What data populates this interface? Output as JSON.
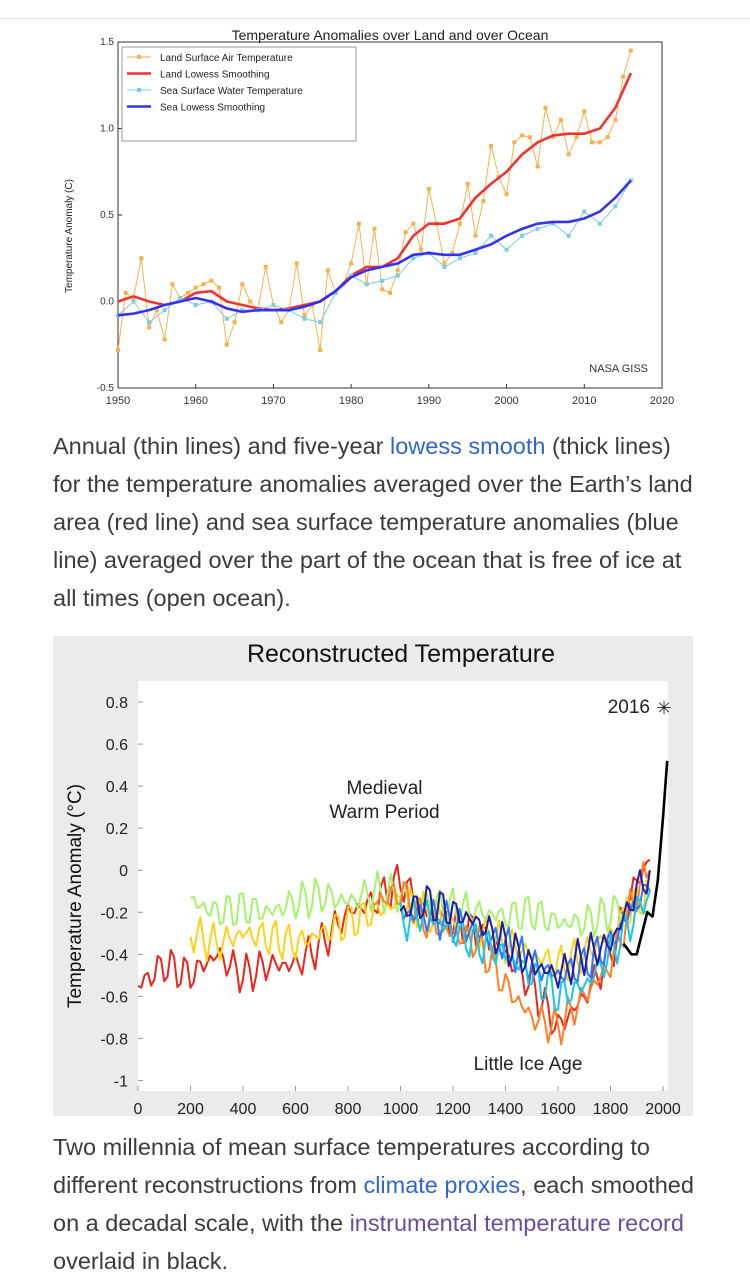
{
  "figure1": {
    "chart_data": {
      "type": "line",
      "title": "Temperature Anomalies over Land and over Ocean",
      "xlabel": "",
      "ylabel": "Temperature Anomaly (C)",
      "xlim": [
        1950,
        2020
      ],
      "ylim": [
        -0.5,
        1.5
      ],
      "xticks": [
        "1950",
        "1960",
        "1970",
        "1980",
        "1990",
        "2000",
        "2010",
        "2020"
      ],
      "yticks": [
        "-0.5",
        "0.0",
        "0.5",
        "1.0",
        "1.5"
      ],
      "grid": false,
      "legend_position": "top-left",
      "annotation": "NASA GISS",
      "series": [
        {
          "name": "Land Surface Air Temperature",
          "style": "thin-markers",
          "color": "#f5b24a",
          "x": [
            1950,
            1951,
            1952,
            1953,
            1954,
            1955,
            1956,
            1957,
            1958,
            1959,
            1960,
            1961,
            1962,
            1963,
            1964,
            1965,
            1966,
            1967,
            1968,
            1969,
            1970,
            1971,
            1972,
            1973,
            1974,
            1975,
            1976,
            1977,
            1978,
            1979,
            1980,
            1981,
            1982,
            1983,
            1984,
            1985,
            1986,
            1987,
            1988,
            1989,
            1990,
            1991,
            1992,
            1993,
            1994,
            1995,
            1996,
            1997,
            1998,
            1999,
            2000,
            2001,
            2002,
            2003,
            2004,
            2005,
            2006,
            2007,
            2008,
            2009,
            2010,
            2011,
            2012,
            2013,
            2014,
            2015,
            2016
          ],
          "values": [
            -0.28,
            0.05,
            0.02,
            0.25,
            -0.15,
            -0.05,
            -0.22,
            0.1,
            0.02,
            0.05,
            0.08,
            0.1,
            0.12,
            0.08,
            -0.25,
            -0.12,
            0.1,
            0.0,
            -0.05,
            0.2,
            -0.02,
            -0.12,
            -0.05,
            0.22,
            -0.08,
            -0.02,
            -0.28,
            0.18,
            0.05,
            0.1,
            0.22,
            0.45,
            0.1,
            0.42,
            0.07,
            0.05,
            0.18,
            0.4,
            0.45,
            0.3,
            0.65,
            0.45,
            0.22,
            0.28,
            0.45,
            0.68,
            0.38,
            0.58,
            0.9,
            0.72,
            0.62,
            0.92,
            0.96,
            0.95,
            0.78,
            1.12,
            0.95,
            1.05,
            0.85,
            0.95,
            1.1,
            0.92,
            0.92,
            0.95,
            1.05,
            1.3,
            1.45
          ]
        },
        {
          "name": "Land Lowess Smoothing",
          "style": "thick",
          "color": "#ee3333",
          "x": [
            1950,
            1952,
            1954,
            1956,
            1958,
            1960,
            1962,
            1964,
            1966,
            1968,
            1970,
            1972,
            1974,
            1976,
            1978,
            1980,
            1982,
            1984,
            1986,
            1988,
            1990,
            1992,
            1994,
            1996,
            1998,
            2000,
            2002,
            2004,
            2006,
            2008,
            2010,
            2012,
            2014,
            2016
          ],
          "values": [
            0.0,
            0.03,
            0.0,
            -0.02,
            0.0,
            0.05,
            0.06,
            0.0,
            -0.02,
            -0.04,
            -0.05,
            -0.04,
            -0.02,
            0.0,
            0.06,
            0.15,
            0.2,
            0.2,
            0.25,
            0.38,
            0.45,
            0.45,
            0.48,
            0.6,
            0.68,
            0.75,
            0.85,
            0.92,
            0.96,
            0.97,
            0.97,
            1.0,
            1.12,
            1.32
          ]
        },
        {
          "name": "Sea Surface Water Temperature",
          "style": "thin-markers",
          "color": "#7ccde0",
          "x": [
            1950,
            1952,
            1954,
            1956,
            1958,
            1960,
            1962,
            1964,
            1966,
            1968,
            1970,
            1972,
            1974,
            1976,
            1978,
            1980,
            1982,
            1984,
            1986,
            1988,
            1990,
            1992,
            1994,
            1996,
            1998,
            2000,
            2002,
            2004,
            2006,
            2008,
            2010,
            2012,
            2014,
            2016
          ],
          "values": [
            -0.08,
            0.0,
            -0.12,
            -0.05,
            0.02,
            -0.02,
            0.0,
            -0.1,
            -0.05,
            -0.05,
            -0.02,
            -0.05,
            -0.1,
            -0.12,
            0.05,
            0.15,
            0.1,
            0.12,
            0.15,
            0.25,
            0.28,
            0.2,
            0.25,
            0.28,
            0.38,
            0.3,
            0.38,
            0.42,
            0.45,
            0.38,
            0.52,
            0.45,
            0.55,
            0.7
          ]
        },
        {
          "name": "Sea Lowess Smoothing",
          "style": "thick",
          "color": "#3333ee",
          "x": [
            1950,
            1952,
            1954,
            1956,
            1958,
            1960,
            1962,
            1964,
            1966,
            1968,
            1970,
            1972,
            1974,
            1976,
            1978,
            1980,
            1982,
            1984,
            1986,
            1988,
            1990,
            1992,
            1994,
            1996,
            1998,
            2000,
            2002,
            2004,
            2006,
            2008,
            2010,
            2012,
            2014,
            2016
          ],
          "values": [
            -0.08,
            -0.07,
            -0.05,
            -0.02,
            0.0,
            0.02,
            0.0,
            -0.04,
            -0.06,
            -0.05,
            -0.05,
            -0.05,
            -0.03,
            0.0,
            0.06,
            0.14,
            0.18,
            0.2,
            0.22,
            0.27,
            0.28,
            0.27,
            0.27,
            0.3,
            0.33,
            0.38,
            0.42,
            0.45,
            0.46,
            0.46,
            0.48,
            0.52,
            0.6,
            0.7
          ]
        }
      ]
    }
  },
  "caption1": {
    "pre": "Annual (thin lines) and five-year ",
    "link": "lowess smooth",
    "post": " (thick lines) for the temperature anomalies averaged over the Earth’s land area (red line) and sea surface temperature anomalies (blue line) averaged over the part of the ocean that is free of ice at all times (open ocean)."
  },
  "figure2": {
    "chart_data": {
      "type": "line",
      "title": "Reconstructed Temperature",
      "xlabel": "",
      "ylabel": "Temperature Anomaly (°C)",
      "xlim": [
        0,
        2000
      ],
      "ylim": [
        -1,
        0.8
      ],
      "xticks": [
        "0",
        "200",
        "400",
        "600",
        "800",
        "1000",
        "1200",
        "1400",
        "1600",
        "1800",
        "2000"
      ],
      "yticks": [
        "0.8",
        "0.6",
        "0.4",
        "0.2",
        "0",
        "-0.2",
        "-0.4",
        "-0.6",
        "-0.8",
        "-1"
      ],
      "grid": false,
      "annotations": [
        {
          "text": "Medieval Warm Period",
          "x": 1000,
          "y": 0.3
        },
        {
          "text": "Little Ice Age",
          "x": 1600,
          "y": -1.0
        },
        {
          "text": "2016",
          "x": 1900,
          "y": 0.75
        }
      ],
      "series": [
        {
          "color": "#e8261b",
          "x": [
            0,
            100,
            200,
            300,
            400,
            500,
            600,
            700,
            800,
            900,
            1000,
            1100,
            1200,
            1300,
            1400,
            1500,
            1600,
            1700,
            1800,
            1900,
            1950
          ],
          "values": [
            -0.55,
            -0.45,
            -0.5,
            -0.4,
            -0.5,
            -0.45,
            -0.45,
            -0.35,
            -0.2,
            -0.15,
            -0.05,
            -0.2,
            -0.25,
            -0.3,
            -0.4,
            -0.55,
            -0.75,
            -0.6,
            -0.4,
            -0.05,
            0.05
          ]
        },
        {
          "color": "#ffd21a",
          "x": [
            200,
            300,
            400,
            500,
            600,
            700,
            800,
            900,
            1000,
            1100,
            1200,
            1300,
            1400,
            1500,
            1600,
            1700,
            1800,
            1900,
            1950
          ],
          "values": [
            -0.3,
            -0.35,
            -0.3,
            -0.32,
            -0.35,
            -0.3,
            -0.25,
            -0.2,
            -0.15,
            -0.2,
            -0.25,
            -0.3,
            -0.35,
            -0.4,
            -0.45,
            -0.4,
            -0.3,
            -0.15,
            -0.1
          ]
        },
        {
          "color": "#a7f26a",
          "x": [
            200,
            300,
            400,
            500,
            600,
            700,
            800,
            900,
            1000,
            1100,
            1200,
            1300,
            1400,
            1500,
            1600,
            1700,
            1800,
            1900,
            1950
          ],
          "values": [
            -0.15,
            -0.2,
            -0.18,
            -0.2,
            -0.15,
            -0.12,
            -0.15,
            -0.1,
            -0.12,
            -0.15,
            -0.18,
            -0.2,
            -0.22,
            -0.2,
            -0.25,
            -0.25,
            -0.2,
            -0.15,
            -0.2
          ]
        },
        {
          "color": "#ff7f27",
          "x": [
            900,
            1000,
            1100,
            1200,
            1300,
            1400,
            1500,
            1600,
            1700,
            1800,
            1900,
            1950
          ],
          "values": [
            -0.15,
            -0.1,
            -0.25,
            -0.3,
            -0.35,
            -0.55,
            -0.7,
            -0.75,
            -0.6,
            -0.45,
            -0.1,
            0.0
          ]
        },
        {
          "color": "#2f79ff",
          "x": [
            1000,
            1100,
            1200,
            1300,
            1400,
            1500,
            1600,
            1700,
            1800,
            1900,
            1950
          ],
          "values": [
            -0.2,
            -0.22,
            -0.25,
            -0.3,
            -0.35,
            -0.45,
            -0.5,
            -0.45,
            -0.35,
            -0.15,
            -0.1
          ]
        },
        {
          "color": "#17c7e8",
          "x": [
            1000,
            1100,
            1200,
            1300,
            1400,
            1500,
            1600,
            1700,
            1800,
            1900,
            1950
          ],
          "values": [
            -0.25,
            -0.2,
            -0.3,
            -0.35,
            -0.4,
            -0.5,
            -0.6,
            -0.55,
            -0.4,
            -0.2,
            -0.1
          ]
        },
        {
          "color": "#1f1fa0",
          "x": [
            1000,
            1100,
            1200,
            1300,
            1400,
            1500,
            1600,
            1700,
            1800,
            1900,
            1950
          ],
          "values": [
            -0.2,
            -0.15,
            -0.2,
            -0.25,
            -0.35,
            -0.45,
            -0.5,
            -0.4,
            -0.35,
            -0.1,
            0.0
          ]
        },
        {
          "color": "#000000",
          "x": [
            1850,
            1880,
            1900,
            1920,
            1940,
            1960,
            1980,
            2000,
            2016
          ],
          "values": [
            -0.35,
            -0.4,
            -0.4,
            -0.3,
            -0.2,
            -0.22,
            -0.05,
            0.25,
            0.52
          ]
        }
      ]
    }
  },
  "caption2": {
    "pre": "Two millennia of mean surface temperatures according to different reconstructions from ",
    "link1": "climate proxies",
    "mid": ", each smoothed on a decadal scale, with the ",
    "link2": "instrumental temperature record",
    "post": " overlaid in black."
  }
}
